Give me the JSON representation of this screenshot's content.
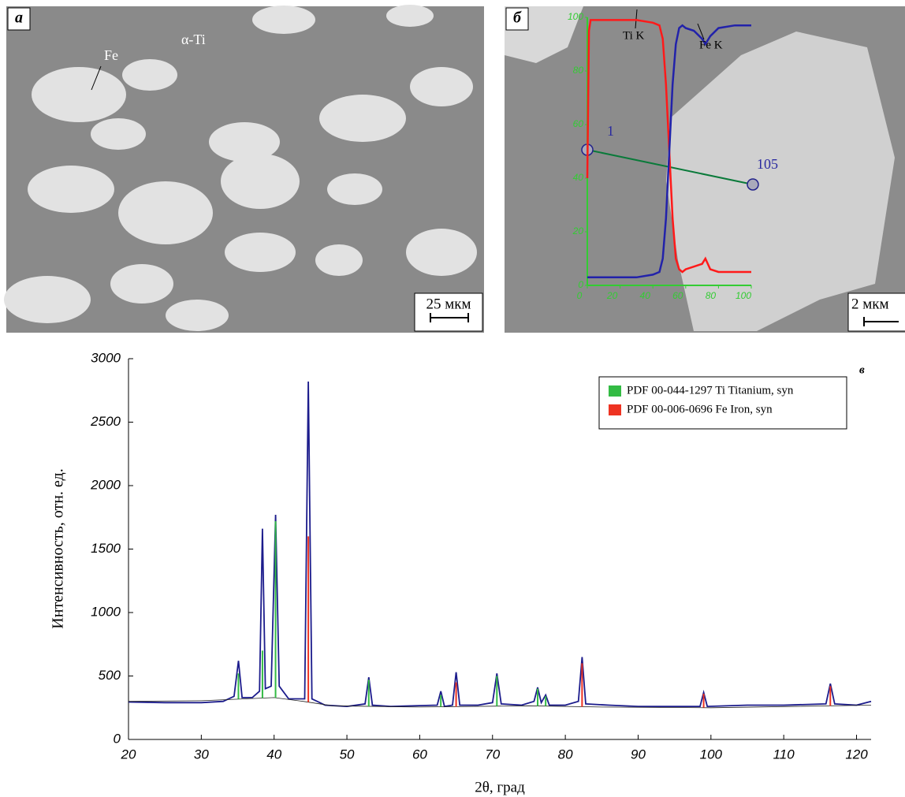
{
  "micrograph_a": {
    "panel_label": "а",
    "annotations": [
      "Fe",
      "α-Ti"
    ],
    "scale_bar": "25 мкм"
  },
  "chart_data": [
    {
      "type": "line",
      "panel_label": "б",
      "scale_bar": "2 мкм",
      "scan_points": [
        "1",
        "105"
      ],
      "xlim": [
        0,
        100
      ],
      "ylim": [
        0,
        100
      ],
      "xticks": [
        0,
        20,
        40,
        60,
        80,
        100
      ],
      "yticks": [
        0,
        20,
        40,
        60,
        80,
        100
      ],
      "axis_color": "#33cc33",
      "x": [
        0,
        1,
        2,
        3,
        5,
        10,
        20,
        30,
        40,
        44,
        46,
        48,
        50,
        52,
        54,
        56,
        58,
        60,
        65,
        70,
        72,
        75,
        80,
        90,
        100
      ],
      "series": [
        {
          "name": "Ti K",
          "color": "#ff1a1a",
          "values": [
            40,
            95,
            99,
            99,
            99,
            99,
            99,
            99,
            98,
            97,
            92,
            75,
            50,
            25,
            10,
            6,
            5,
            6,
            7,
            8,
            10,
            6,
            5,
            5,
            5
          ]
        },
        {
          "name": "Fe K",
          "color": "#2222aa",
          "values": [
            3,
            3,
            3,
            3,
            3,
            3,
            3,
            3,
            4,
            5,
            10,
            25,
            50,
            75,
            90,
            96,
            97,
            96,
            95,
            92,
            90,
            93,
            96,
            97,
            97
          ]
        }
      ]
    },
    {
      "type": "xrd",
      "panel_label": "в",
      "x_label": "2θ, град",
      "y_label": "Интенсивность, отн. ед.",
      "xlim": [
        20,
        122
      ],
      "ylim": [
        0,
        3000
      ],
      "xticks": [
        20,
        30,
        40,
        50,
        60,
        70,
        80,
        90,
        100,
        110,
        120
      ],
      "yticks": [
        0,
        500,
        1000,
        1500,
        2000,
        2500,
        3000
      ],
      "legend": "top-right",
      "pattern": {
        "color": "#1c1c8c",
        "x": [
          20,
          25,
          30,
          33,
          34.5,
          35.1,
          35.6,
          37,
          38,
          38.4,
          38.8,
          39.6,
          40.2,
          40.7,
          42,
          44.2,
          44.7,
          45.2,
          47,
          50,
          52.5,
          53,
          53.5,
          56,
          62.4,
          62.9,
          63.4,
          64.5,
          65,
          65.5,
          68,
          70,
          70.6,
          71.2,
          74,
          75.7,
          76.2,
          76.7,
          77.3,
          77.8,
          80,
          81.8,
          82.3,
          82.8,
          86,
          90,
          98.5,
          99,
          99.5,
          105,
          110,
          115.8,
          116.4,
          117,
          120,
          122
        ],
        "values": [
          295,
          290,
          290,
          300,
          340,
          620,
          330,
          330,
          380,
          1660,
          400,
          420,
          1770,
          420,
          320,
          320,
          2820,
          320,
          270,
          260,
          280,
          490,
          270,
          260,
          270,
          380,
          260,
          270,
          530,
          270,
          270,
          290,
          520,
          280,
          270,
          300,
          410,
          290,
          350,
          270,
          270,
          300,
          650,
          280,
          270,
          260,
          260,
          370,
          260,
          270,
          270,
          280,
          440,
          280,
          270,
          300
        ]
      },
      "background": {
        "color": "#222222",
        "x": [
          20,
          30,
          36,
          40,
          44,
          48,
          60,
          75,
          85,
          100,
          122
        ],
        "values": [
          300,
          305,
          320,
          330,
          300,
          265,
          255,
          265,
          255,
          250,
          270
        ]
      },
      "series": [
        {
          "name": "PDF 00-044-1297 Ti Titanium, syn",
          "color": "#33bb44",
          "x": [
            35.1,
            38.4,
            40.2,
            53.0,
            62.9,
            70.6,
            76.2,
            77.3
          ],
          "values": [
            520,
            700,
            1720,
            470,
            350,
            500,
            400,
            340
          ]
        },
        {
          "name": "PDF 00-006-0696 Fe Iron, syn",
          "color": "#ee3322",
          "x": [
            44.7,
            65.0,
            82.3,
            99.0,
            116.4
          ],
          "values": [
            1600,
            450,
            600,
            360,
            420
          ]
        }
      ]
    }
  ]
}
